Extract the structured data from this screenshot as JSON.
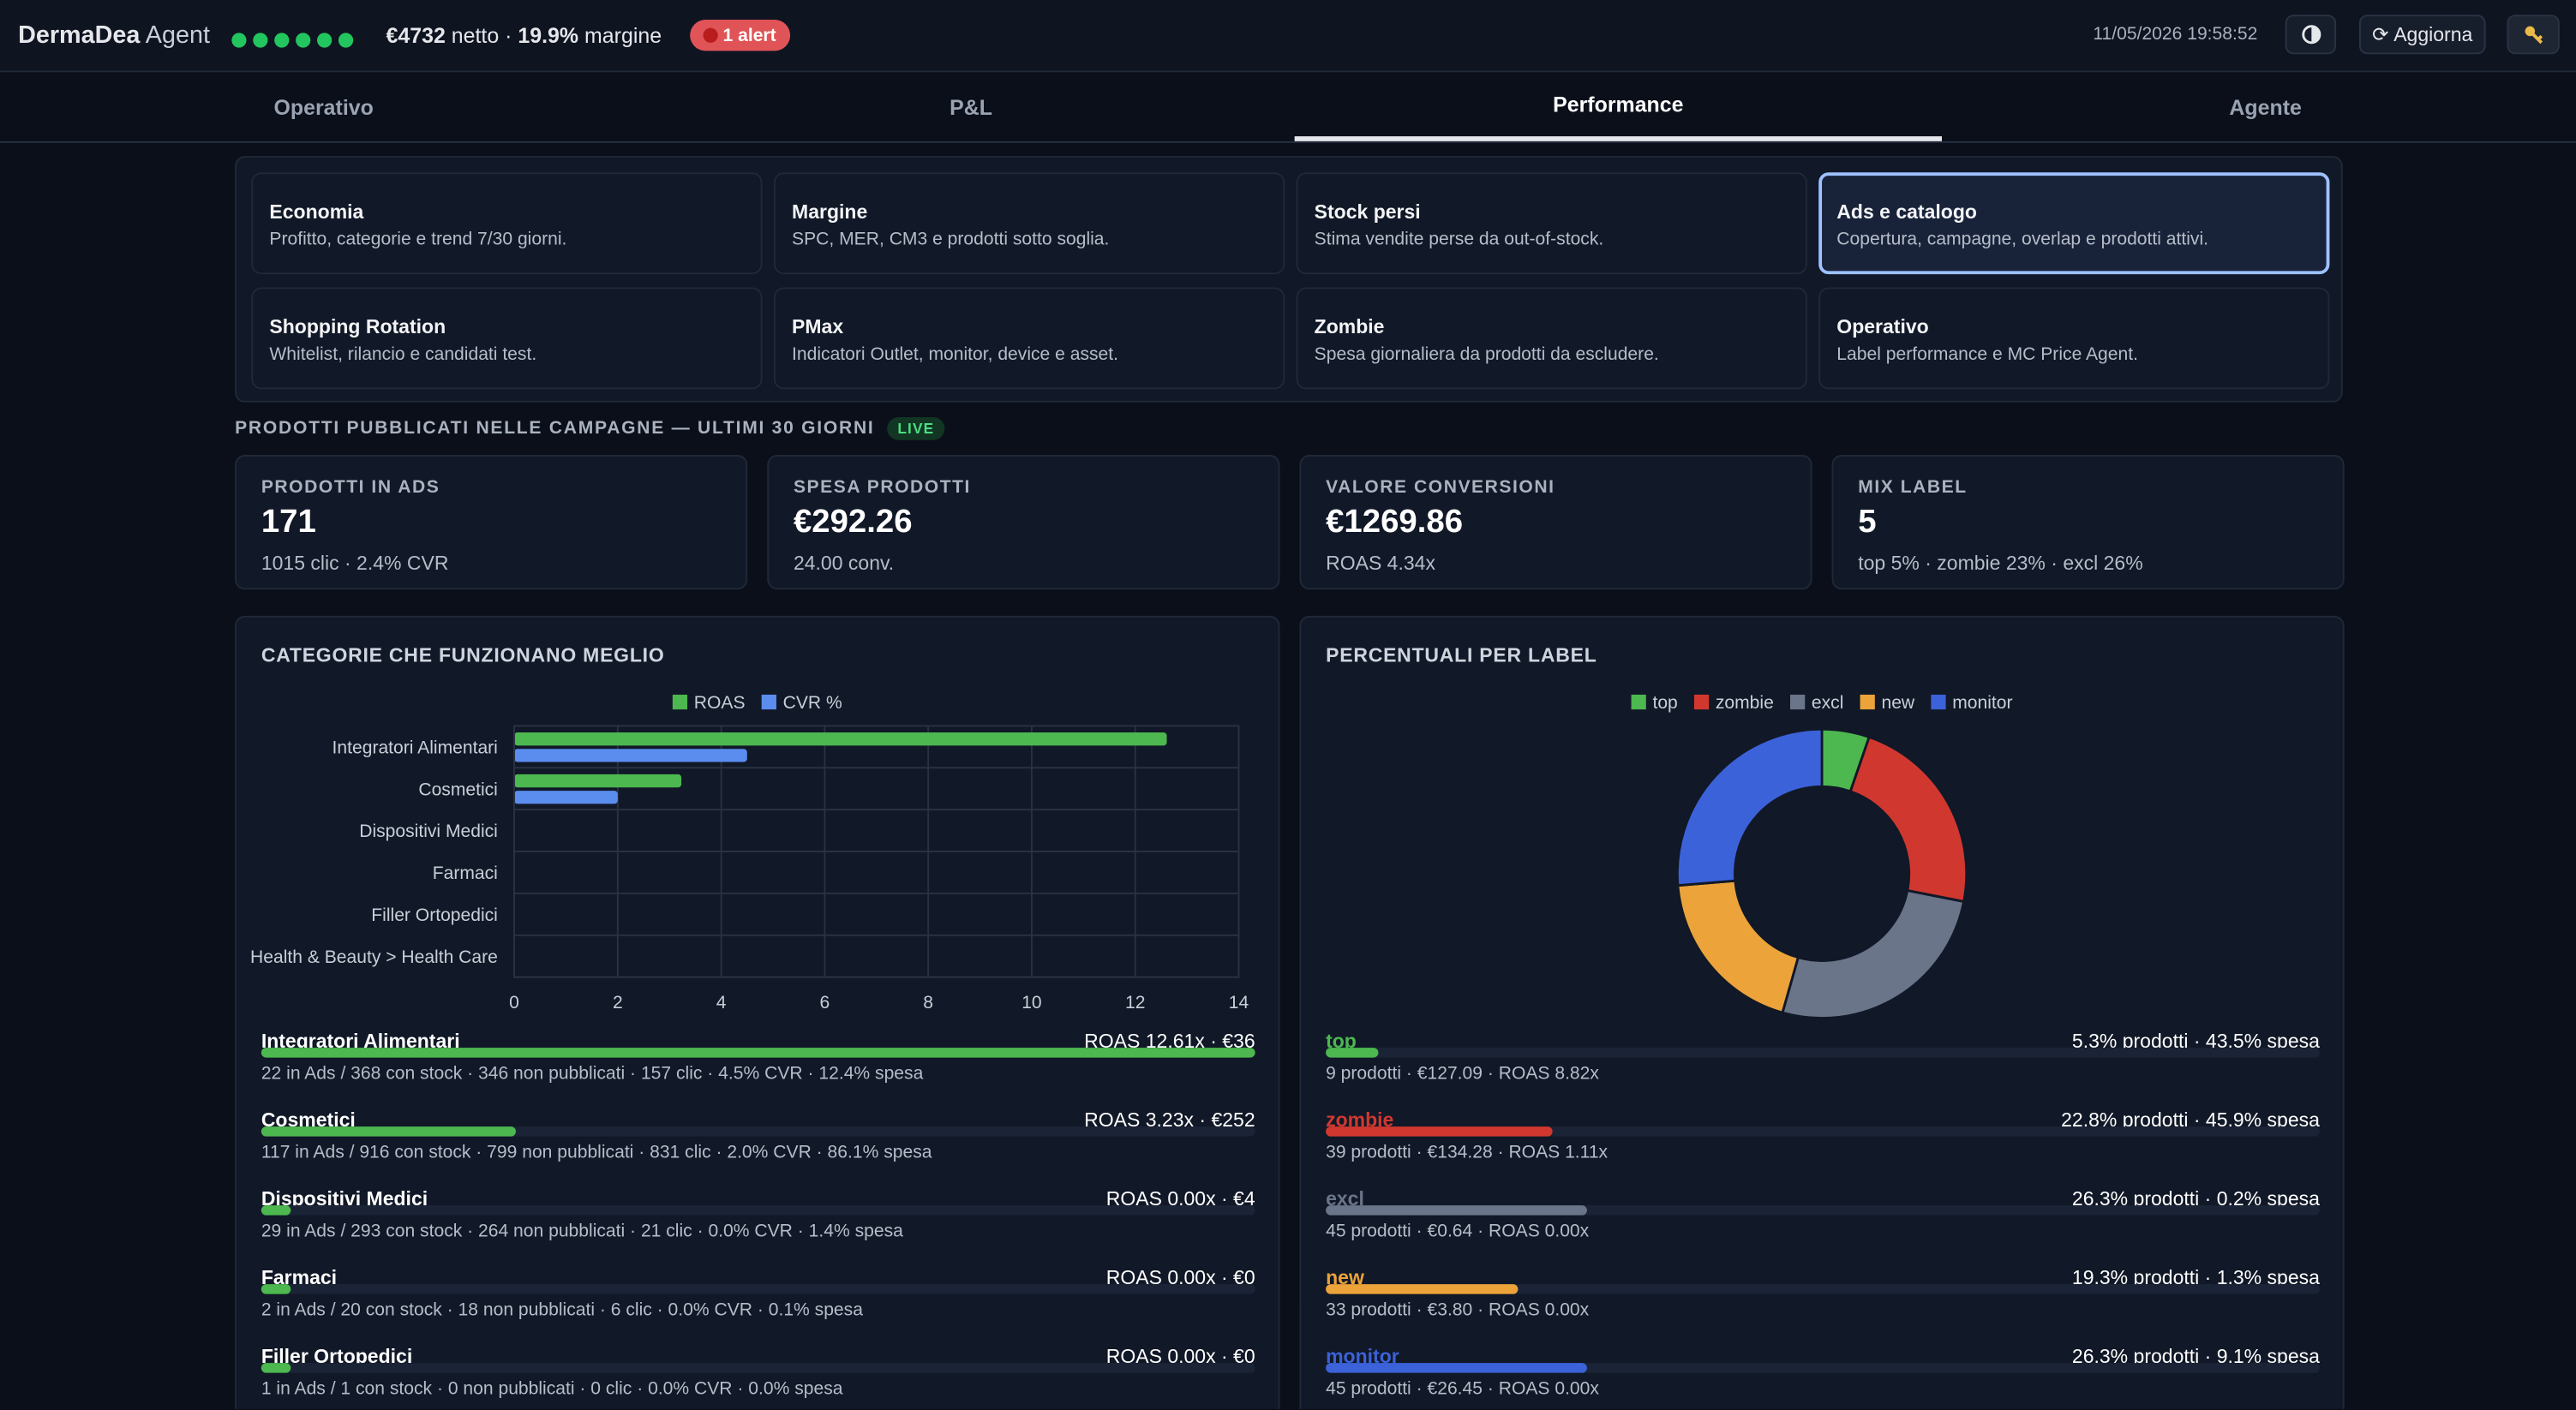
{
  "header": {
    "brand": "DermaDea",
    "brand_suffix": "Agent",
    "net": "€4732",
    "net_label": "netto ·",
    "margin": "19.9%",
    "margin_label": "margine",
    "alert": "1 alert",
    "timestamp": "11/05/2026 19:58:52",
    "refresh": "Aggiorna"
  },
  "tabs": [
    "Operativo",
    "P&L",
    "Performance",
    "Agente"
  ],
  "active_tab": 2,
  "cards": [
    {
      "title": "Economia",
      "description": "Profitto, categorie e trend 7/30 giorni."
    },
    {
      "title": "Margine",
      "description": "SPC, MER, CM3 e prodotti sotto soglia."
    },
    {
      "title": "Stock persi",
      "description": "Stima vendite perse da out-of-stock."
    },
    {
      "title": "Ads e catalogo",
      "description": "Copertura, campagne, overlap e prodotti attivi."
    },
    {
      "title": "Shopping Rotation",
      "description": "Whitelist, rilancio e candidati test."
    },
    {
      "title": "PMax",
      "description": "Indicatori Outlet, monitor, device e asset."
    },
    {
      "title": "Zombie",
      "description": "Spesa giornaliera da prodotti da escludere."
    },
    {
      "title": "Operativo",
      "description": "Label performance e MC Price Agent."
    }
  ],
  "selected_card": 3,
  "section": {
    "title": "PRODOTTI PUBBLICATI NELLE CAMPAGNE — ULTIMI 30 GIORNI",
    "badge": "LIVE"
  },
  "kpis": [
    {
      "label": "PRODOTTI IN ADS",
      "value": "171",
      "sub": "1015 clic · 2.4% CVR"
    },
    {
      "label": "SPESA PRODOTTI",
      "value": "€292.26",
      "sub": "24.00 conv."
    },
    {
      "label": "VALORE CONVERSIONI",
      "value": "€1269.86",
      "sub": "ROAS 4.34x"
    },
    {
      "label": "MIX LABEL",
      "value": "5",
      "sub": "top 5% · zombie 23% · excl 26%"
    }
  ],
  "category_chart": {
    "type": "bar",
    "title": "CATEGORIE CHE FUNZIONANO MEGLIO",
    "categories": [
      "Integratori Alimentari",
      "Cosmetici",
      "Dispositivi Medici",
      "Farmaci",
      "Filler Ortopedici",
      "Health & Beauty > Health Care"
    ],
    "series": [
      {
        "name": "ROAS",
        "color": "#4cb84f",
        "values": [
          12.61,
          3.23,
          0,
          0,
          0,
          0
        ]
      },
      {
        "name": "CVR %",
        "color": "#5b8def",
        "values": [
          4.5,
          2.0,
          0,
          0,
          0,
          0
        ]
      }
    ],
    "xlim": [
      0,
      14
    ],
    "xticks": [
      0,
      2,
      4,
      6,
      8,
      10,
      12,
      14
    ],
    "grid": true
  },
  "category_list": [
    {
      "name": "Integratori Alimentari",
      "roas": 12.61,
      "summary": "ROAS 12.61x · €36",
      "detail": "22 in Ads / 368 con stock · 346 non pubblicati · 157 clic · 4.5% CVR · 12.4% spesa"
    },
    {
      "name": "Cosmetici",
      "roas": 3.23,
      "summary": "ROAS 3.23x · €252",
      "detail": "117 in Ads / 916 con stock · 799 non pubblicati · 831 clic · 2.0% CVR · 86.1% spesa"
    },
    {
      "name": "Dispositivi Medici",
      "roas": 0,
      "summary": "ROAS 0.00x · €4",
      "detail": "29 in Ads / 293 con stock · 264 non pubblicati · 21 clic · 0.0% CVR · 1.4% spesa"
    },
    {
      "name": "Farmaci",
      "roas": 0,
      "summary": "ROAS 0.00x · €0",
      "detail": "2 in Ads / 20 con stock · 18 non pubblicati · 6 clic · 0.0% CVR · 0.1% spesa"
    },
    {
      "name": "Filler Ortopedici",
      "roas": 0,
      "summary": "ROAS 0.00x · €0",
      "detail": "1 in Ads / 1 con stock · 0 non pubblicati · 0 clic · 0.0% CVR · 0.0% spesa"
    }
  ],
  "label_chart": {
    "type": "donut",
    "title": "PERCENTUALI PER LABEL",
    "categories": [
      "top",
      "zombie",
      "excl",
      "new",
      "monitor"
    ],
    "colors": [
      "#4cb84f",
      "#d0382f",
      "#6b7589",
      "#eba33a",
      "#3b62d9"
    ],
    "values": [
      5.3,
      22.8,
      26.3,
      19.3,
      26.3
    ]
  },
  "label_list": [
    {
      "summary": "5.3% prodotti · 43.5% spesa",
      "detail": "9 prodotti · €127.09 · ROAS 8.82x"
    },
    {
      "summary": "22.8% prodotti · 45.9% spesa",
      "detail": "39 prodotti · €134.28 · ROAS 1.11x"
    },
    {
      "summary": "26.3% prodotti · 0.2% spesa",
      "detail": "45 prodotti · €0.64 · ROAS 0.00x"
    },
    {
      "summary": "19.3% prodotti · 1.3% spesa",
      "detail": "33 prodotti · €3.80 · ROAS 0.00x"
    },
    {
      "summary": "26.3% prodotti · 9.1% spesa",
      "detail": "45 prodotti · €26.45 · ROAS 0.00x"
    }
  ]
}
